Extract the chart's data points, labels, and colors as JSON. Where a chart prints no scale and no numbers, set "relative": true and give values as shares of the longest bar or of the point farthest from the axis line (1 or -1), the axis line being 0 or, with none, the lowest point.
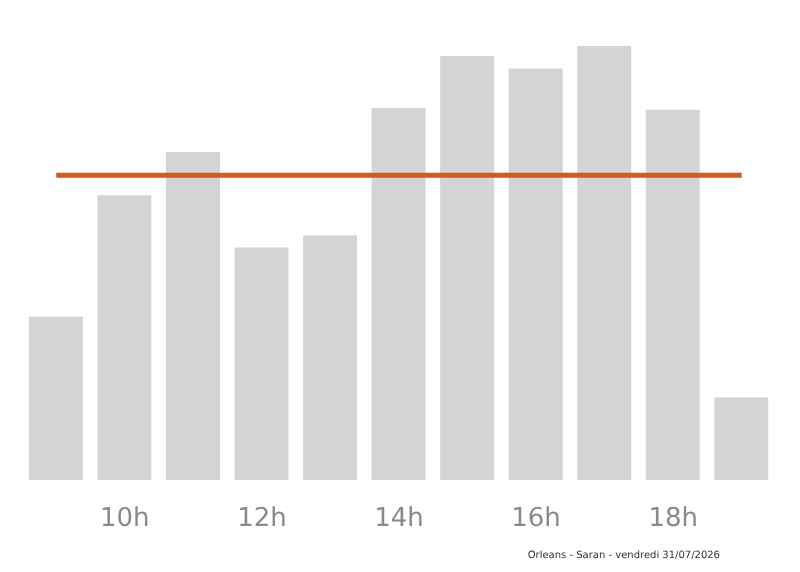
{
  "chart_data": {
    "type": "bar",
    "relative": true,
    "categories": [
      null,
      "10h",
      null,
      "12h",
      null,
      "14h",
      null,
      "16h",
      null,
      "18h",
      null
    ],
    "values": [
      0.376,
      0.656,
      0.756,
      0.536,
      0.564,
      0.857,
      0.977,
      0.948,
      1,
      0.853,
      0.19
    ],
    "color": "#d4d4d6",
    "ref_lines": [
      {
        "axis": "y",
        "value": 0.702,
        "color": "#d45a1a"
      }
    ],
    "grid": false,
    "legend": false,
    "annotations": [
      "Orleans - Saran - vendredi 31/07/2026"
    ]
  }
}
